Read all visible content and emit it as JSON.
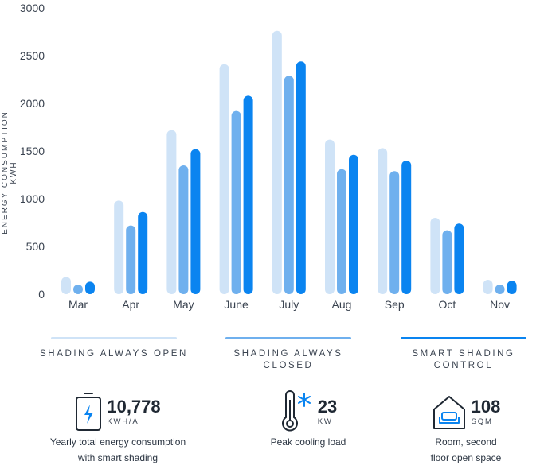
{
  "chart_data": {
    "type": "bar",
    "ylabel": "ENERGY CONSUMPTION KWH",
    "ylim": [
      0,
      3000
    ],
    "yticks": [
      0,
      500,
      1000,
      1500,
      2000,
      2500,
      3000
    ],
    "categories": [
      "Mar",
      "Apr",
      "May",
      "June",
      "July",
      "Aug",
      "Sep",
      "Oct",
      "Nov"
    ],
    "series": [
      {
        "name": "SHADING ALWAYS OPEN",
        "color": "#cfe3f7",
        "values": [
          180,
          980,
          1720,
          2410,
          2760,
          1620,
          1530,
          800,
          150
        ]
      },
      {
        "name": "SHADING ALWAYS CLOSED",
        "color": "#6fb0ee",
        "values": [
          40,
          720,
          1350,
          1920,
          2290,
          1310,
          1290,
          670,
          90
        ]
      },
      {
        "name": "SMART SHADING CONTROL",
        "color": "#0a84f0",
        "values": [
          130,
          860,
          1520,
          2080,
          2440,
          1460,
          1400,
          740,
          140
        ]
      }
    ],
    "legend": "bottom"
  },
  "legend_labels": {
    "open": "SHADING ALWAYS OPEN",
    "closed": "SHADING ALWAYS CLOSED",
    "smart_line1": "SMART SHADING",
    "smart_line2": "CONTROL"
  },
  "stats": [
    {
      "icon": "battery-charging-icon",
      "value": "10,778",
      "unit": "KWH/A",
      "desc": "Yearly total energy consumption\nwith smart shading"
    },
    {
      "icon": "thermometer-snowflake-icon",
      "value": "23",
      "unit": "KW",
      "desc": "Peak cooling load"
    },
    {
      "icon": "house-sofa-icon",
      "value": "108",
      "unit": "SQM",
      "desc": "Room, second\nfloor open space"
    }
  ]
}
